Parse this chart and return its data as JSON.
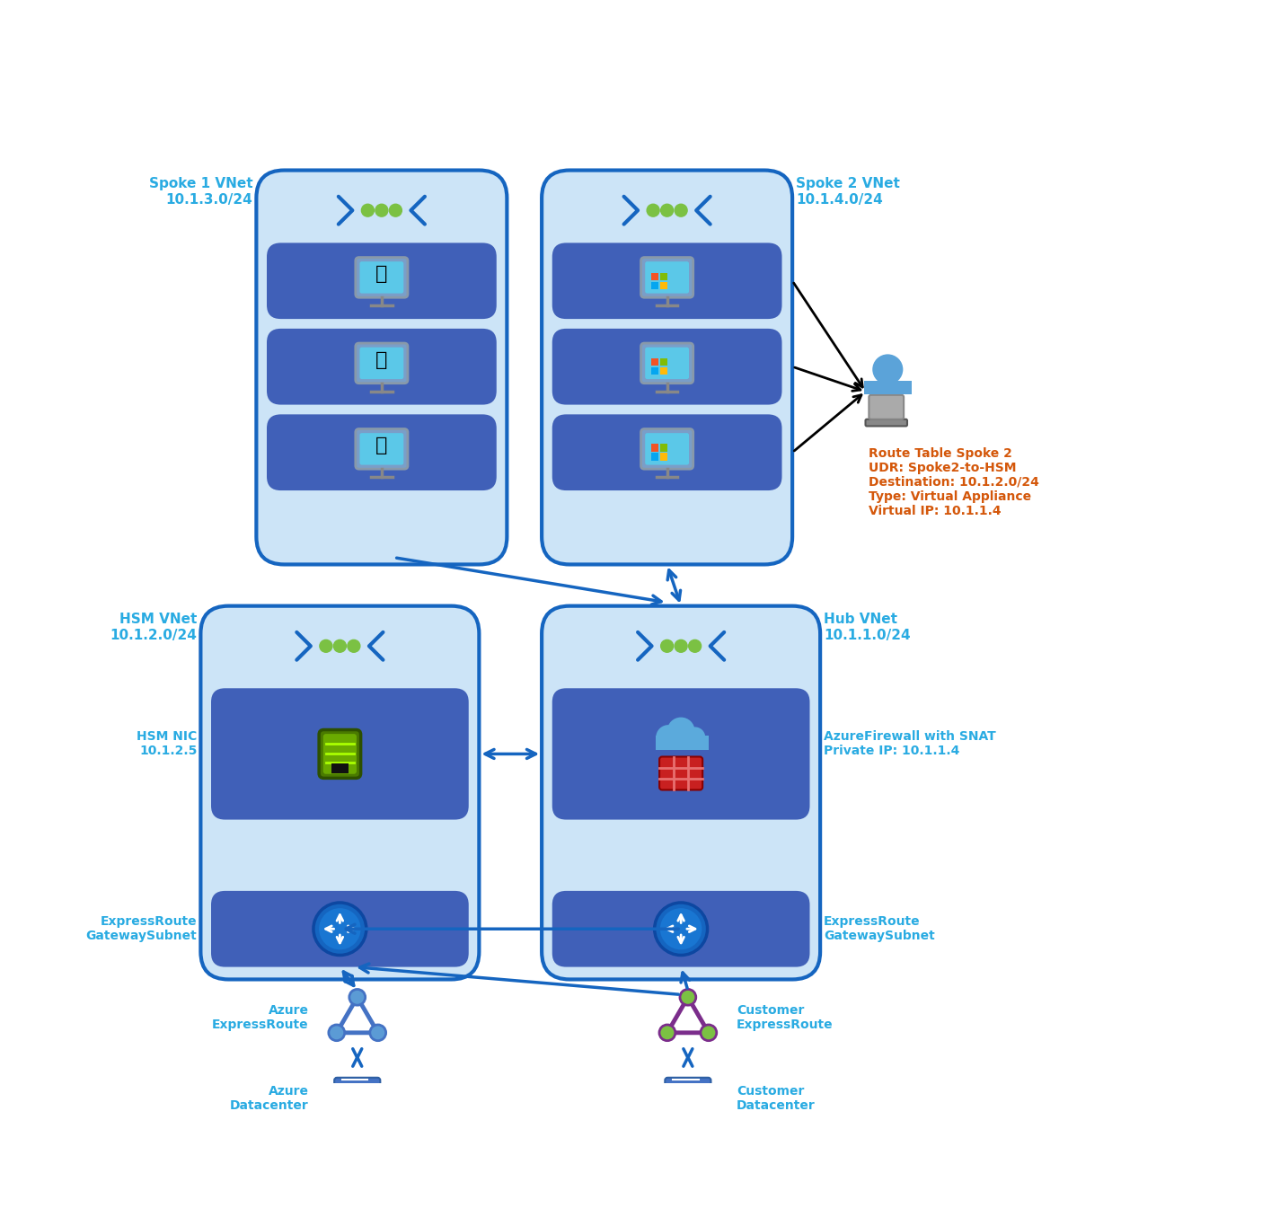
{
  "bg_color": "#ffffff",
  "vnet_fill": "#cce4f7",
  "vnet_border": "#1565c0",
  "row_fill": "#4060b0",
  "label_blue": "#29abe2",
  "orange": "#d4570a",
  "green": "#7bc143",
  "purple": "#7b2d8b",
  "dark_blue": "#1565c0",
  "row_blue": "#3a5fa0",
  "spoke1_label": "Spoke 1 VNet\n10.1.3.0/24",
  "spoke2_label": "Spoke 2 VNet\n10.1.4.0/24",
  "hsm_label": "HSM VNet\n10.1.2.0/24",
  "hub_label": "Hub VNet\n10.1.1.0/24",
  "hsm_nic_label": "HSM NIC\n10.1.2.5",
  "er_gw_label_hsm": "ExpressRoute\nGatewaySubnet",
  "fw_label": "AzureFirewall with SNAT\nPrivate IP: 10.1.1.4",
  "hub_er_gw_label": "ExpressRoute\nGatewaySubnet",
  "azure_er_label": "Azure\nExpressRoute",
  "azure_dc_label": "Azure\nDatacenter",
  "customer_er_label": "Customer\nExpressRoute",
  "customer_dc_label": "Customer\nDatacenter",
  "route_table_text": "Route Table Spoke 2\nUDR: Spoke2-to-HSM\nDestination: 10.1.2.0/24\nType: Virtual Appliance\nVirtual IP: 10.1.1.4"
}
